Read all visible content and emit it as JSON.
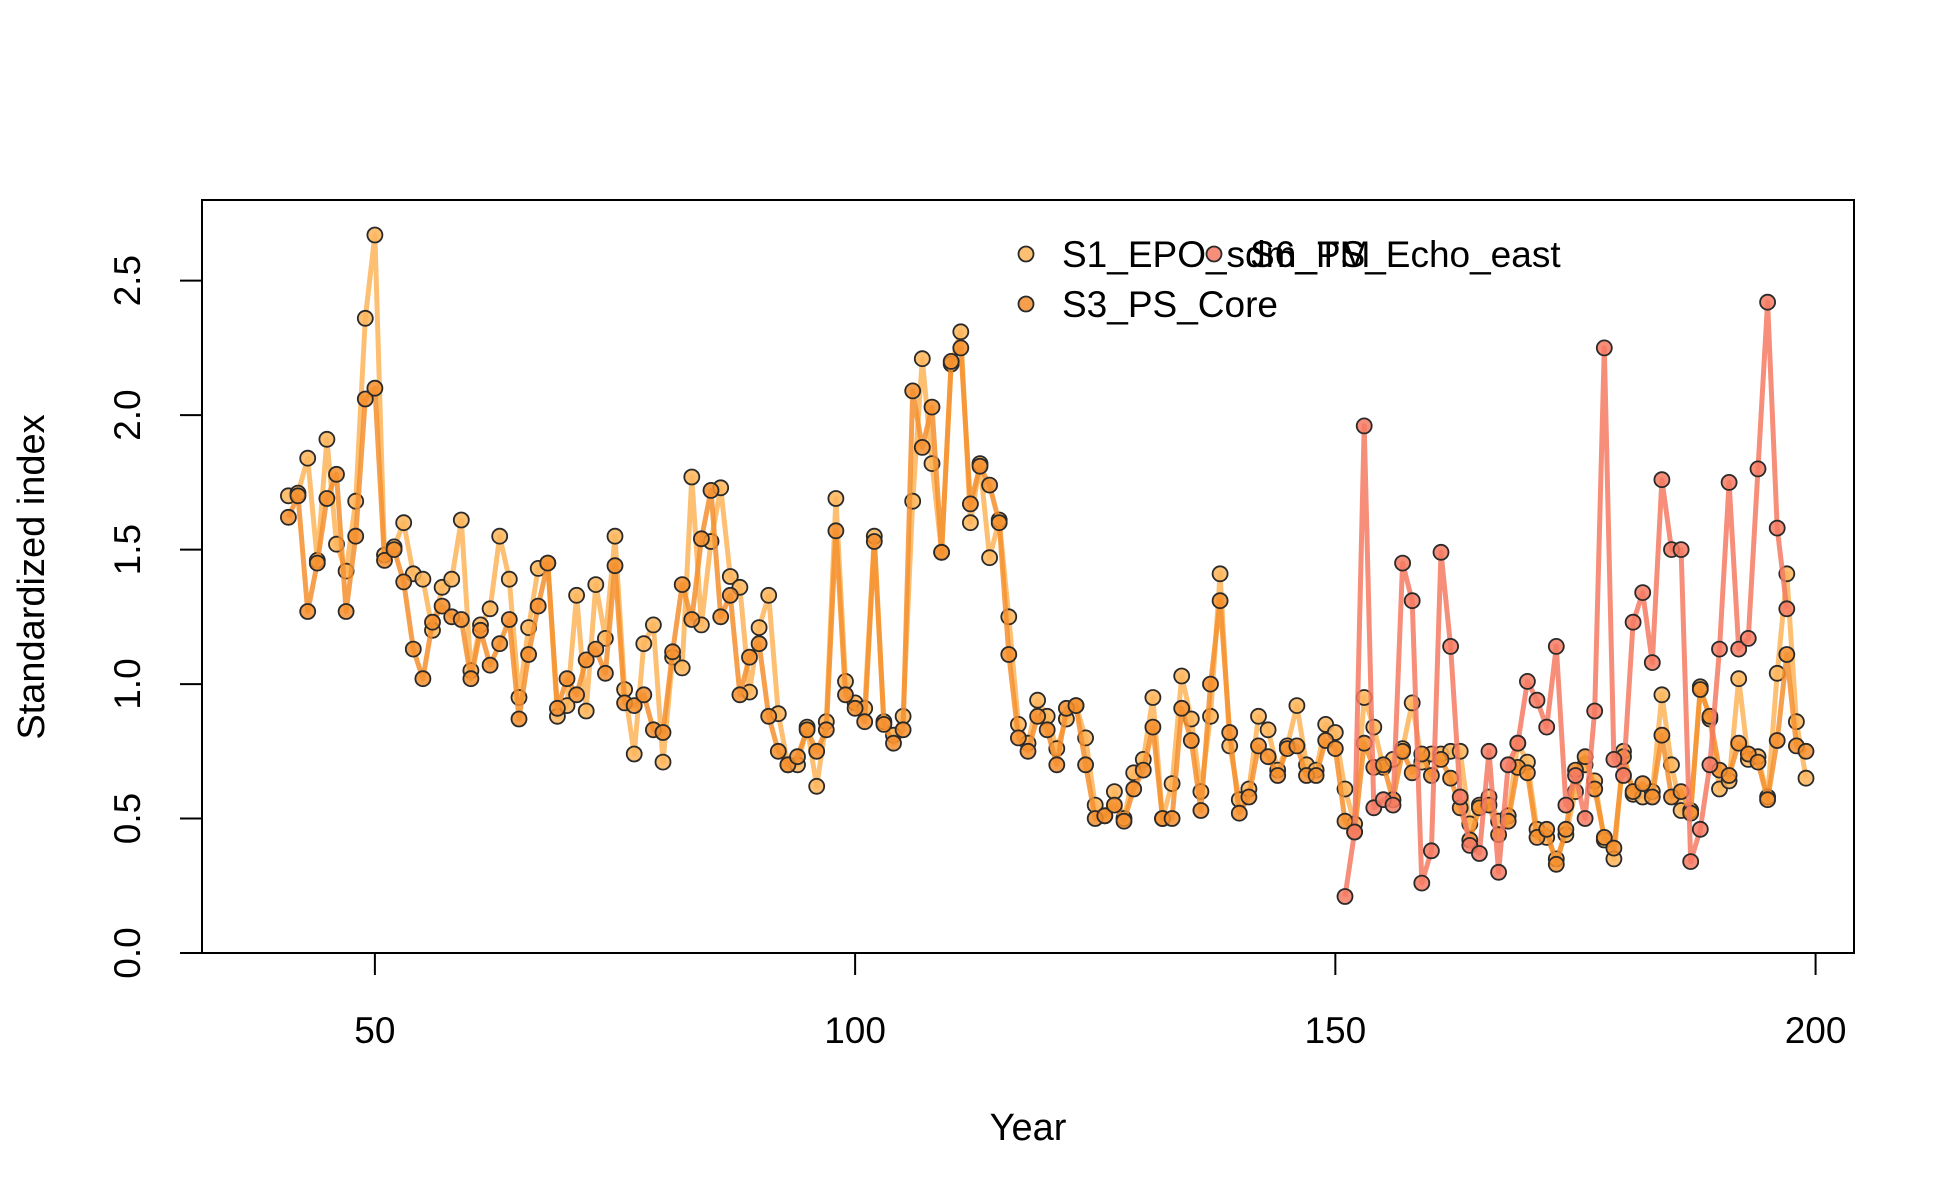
{
  "chart_data": {
    "type": "line",
    "title": "",
    "xlabel": "Year",
    "ylabel": "Standardized index",
    "xlim": [
      32,
      204
    ],
    "ylim": [
      0,
      2.8
    ],
    "x_ticks": [
      50,
      100,
      150,
      200
    ],
    "x_tick_labels": [
      "50",
      "100",
      "150",
      "200"
    ],
    "y_ticks": [
      0,
      0.5,
      1,
      1.5,
      2,
      2.5
    ],
    "y_tick_labels": [
      "0.0",
      "0.5",
      "1.0",
      "1.5",
      "2.0",
      "2.5"
    ],
    "grid": false,
    "legend_position": "top-right",
    "series": [
      {
        "name": "S1_EPO_sdm_TM",
        "color": "#FDB55A",
        "x_start": 41,
        "values": [
          1.7,
          1.71,
          1.84,
          1.46,
          1.91,
          1.52,
          1.42,
          1.68,
          2.36,
          2.67,
          1.48,
          1.51,
          1.6,
          1.41,
          1.39,
          1.2,
          1.36,
          1.39,
          1.61,
          1.05,
          1.22,
          1.28,
          1.55,
          1.39,
          0.95,
          1.21,
          1.43,
          1.45,
          0.88,
          0.92,
          1.33,
          0.9,
          1.37,
          1.17,
          1.55,
          0.98,
          0.74,
          1.15,
          1.22,
          0.71,
          1.1,
          1.06,
          1.77,
          1.22,
          1.53,
          1.73,
          1.4,
          1.36,
          0.97,
          1.21,
          1.33,
          0.89,
          0.7,
          0.7,
          0.84,
          0.62,
          0.86,
          1.69,
          1.01,
          0.93,
          0.91,
          1.55,
          0.86,
          0.81,
          0.88,
          1.68,
          2.21,
          1.82,
          1.49,
          2.19,
          2.31,
          1.6,
          1.82,
          1.47,
          1.61,
          1.25,
          0.85,
          0.78,
          0.94,
          0.88,
          0.76,
          0.87,
          0.92,
          0.8,
          0.55,
          0.51,
          0.6,
          0.5,
          0.67,
          0.72,
          0.95,
          0.5,
          0.63,
          1.03,
          0.87,
          0.6,
          0.88,
          1.41,
          0.77,
          0.57,
          0.61,
          0.88,
          0.83,
          0.68,
          0.77,
          0.92,
          0.7,
          0.68,
          0.85,
          0.82,
          0.61,
          0.48,
          0.95,
          0.84,
          0.69,
          0.72,
          0.76,
          0.93,
          0.71,
          0.74,
          0.74,
          0.75,
          0.75,
          0.48,
          0.55,
          0.58,
          0.49,
          0.51,
          0.78,
          0.71,
          0.46,
          0.43,
          0.35,
          0.44,
          0.6,
          0.7,
          0.64,
          0.42,
          0.35,
          0.75,
          0.59,
          0.58,
          0.6,
          0.96,
          0.7,
          0.53,
          0.53,
          0.99,
          0.87,
          0.61,
          0.64,
          1.02,
          0.72,
          0.73,
          0.58,
          1.04,
          1.41,
          0.86,
          0.65
        ]
      },
      {
        "name": "S3_PS_Core",
        "color": "#F58F2E",
        "x_start": 41,
        "values": [
          1.62,
          1.7,
          1.27,
          1.45,
          1.69,
          1.78,
          1.27,
          1.55,
          2.06,
          2.1,
          1.46,
          1.5,
          1.38,
          1.13,
          1.02,
          1.23,
          1.29,
          1.25,
          1.24,
          1.02,
          1.2,
          1.07,
          1.15,
          1.24,
          0.87,
          1.11,
          1.29,
          1.45,
          0.91,
          1.02,
          0.96,
          1.09,
          1.13,
          1.04,
          1.44,
          0.93,
          0.92,
          0.96,
          0.83,
          0.82,
          1.12,
          1.37,
          1.24,
          1.54,
          1.72,
          1.25,
          1.33,
          0.96,
          1.1,
          1.15,
          0.88,
          0.75,
          0.7,
          0.73,
          0.83,
          0.75,
          0.83,
          1.57,
          0.96,
          0.91,
          0.86,
          1.53,
          0.85,
          0.78,
          0.83,
          2.09,
          1.88,
          2.03,
          1.49,
          2.2,
          2.25,
          1.67,
          1.81,
          1.74,
          1.6,
          1.11,
          0.8,
          0.75,
          0.88,
          0.83,
          0.7,
          0.91,
          0.92,
          0.7,
          0.5,
          0.51,
          0.55,
          0.49,
          0.61,
          0.68,
          0.84,
          0.5,
          0.5,
          0.91,
          0.79,
          0.53,
          1.0,
          1.31,
          0.82,
          0.52,
          0.58,
          0.77,
          0.73,
          0.66,
          0.76,
          0.77,
          0.66,
          0.66,
          0.79,
          0.76,
          0.49,
          0.45,
          0.78,
          0.69,
          0.7,
          0.57,
          0.75,
          0.67,
          0.74,
          0.66,
          0.72,
          0.65,
          0.54,
          0.42,
          0.54,
          0.55,
          0.44,
          0.49,
          0.69,
          0.67,
          0.43,
          0.46,
          0.33,
          0.46,
          0.68,
          0.73,
          0.61,
          0.43,
          0.39,
          0.73,
          0.6,
          0.63,
          0.58,
          0.81,
          0.58,
          0.6,
          0.52,
          0.98,
          0.88,
          0.68,
          0.66,
          0.78,
          0.74,
          0.71,
          0.57,
          0.79,
          1.11,
          0.77,
          0.75
        ]
      },
      {
        "name": "S6_PS_Echo_east",
        "color": "#F47A62",
        "x_start": 151,
        "values": [
          0.21,
          0.45,
          1.96,
          0.54,
          0.57,
          0.55,
          1.45,
          1.31,
          0.26,
          0.38,
          1.49,
          1.14,
          0.58,
          0.4,
          0.37,
          0.75,
          0.3,
          0.7,
          0.78,
          1.01,
          0.94,
          0.84,
          1.14,
          0.55,
          0.66,
          0.5,
          0.9,
          2.25,
          0.72,
          0.66,
          1.23,
          1.34,
          1.08,
          1.76,
          1.5,
          1.5,
          0.34,
          0.46,
          0.7,
          1.13,
          1.75,
          1.13,
          1.17,
          1.8,
          2.42,
          1.58,
          1.28
        ]
      }
    ],
    "legend": {
      "columns": [
        [
          "S1_EPO_sdm_TM",
          "S3_PS_Core"
        ],
        [
          "S6_PS_Echo_east"
        ]
      ]
    }
  }
}
